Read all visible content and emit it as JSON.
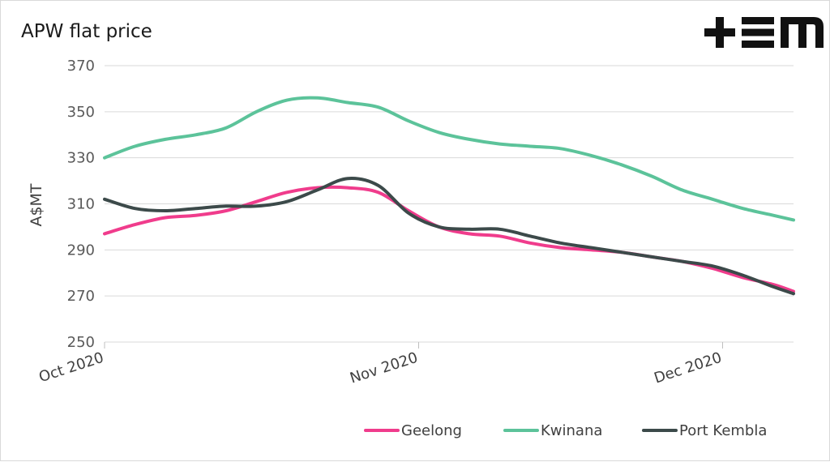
{
  "chart_data": {
    "type": "line",
    "title": "APW flat price",
    "ylabel": "A$MT",
    "xlabel": "",
    "ylim": [
      250,
      370
    ],
    "yticks": [
      250,
      270,
      290,
      310,
      330,
      350,
      370
    ],
    "x_ticks": [
      "Oct 2020",
      "Nov 2020",
      "Dec 2020"
    ],
    "x_tick_positions": [
      0,
      31,
      61
    ],
    "x_range": [
      0,
      68
    ],
    "legend_position": "bottom-right",
    "grid": true,
    "logo_text": "+EM",
    "series": [
      {
        "name": "Geelong",
        "color": "#f03c8c",
        "x": [
          0,
          3,
          6,
          9,
          12,
          15,
          18,
          21,
          24,
          27,
          30,
          33,
          36,
          39,
          42,
          45,
          48,
          51,
          54,
          57,
          60,
          63,
          66,
          68
        ],
        "y": [
          297,
          301,
          304,
          305,
          307,
          311,
          315,
          317,
          317,
          315,
          307,
          300,
          297,
          296,
          293,
          291,
          290,
          289,
          287,
          285,
          282,
          278,
          275,
          272
        ]
      },
      {
        "name": "Kwinana",
        "color": "#5cc39a",
        "x": [
          0,
          3,
          6,
          9,
          12,
          15,
          18,
          21,
          24,
          27,
          30,
          33,
          36,
          39,
          42,
          45,
          48,
          51,
          54,
          57,
          60,
          63,
          66,
          68
        ],
        "y": [
          330,
          335,
          338,
          340,
          343,
          350,
          355,
          356,
          354,
          352,
          346,
          341,
          338,
          336,
          335,
          334,
          331,
          327,
          322,
          316,
          312,
          308,
          305,
          303
        ]
      },
      {
        "name": "Port Kembla",
        "color": "#3c4a4a",
        "x": [
          0,
          3,
          6,
          9,
          12,
          15,
          18,
          21,
          24,
          27,
          30,
          33,
          36,
          39,
          42,
          45,
          48,
          51,
          54,
          57,
          60,
          63,
          66,
          68
        ],
        "y": [
          312,
          308,
          307,
          308,
          309,
          309,
          311,
          316,
          321,
          318,
          306,
          300,
          299,
          299,
          296,
          293,
          291,
          289,
          287,
          285,
          283,
          279,
          274,
          271
        ]
      }
    ]
  }
}
